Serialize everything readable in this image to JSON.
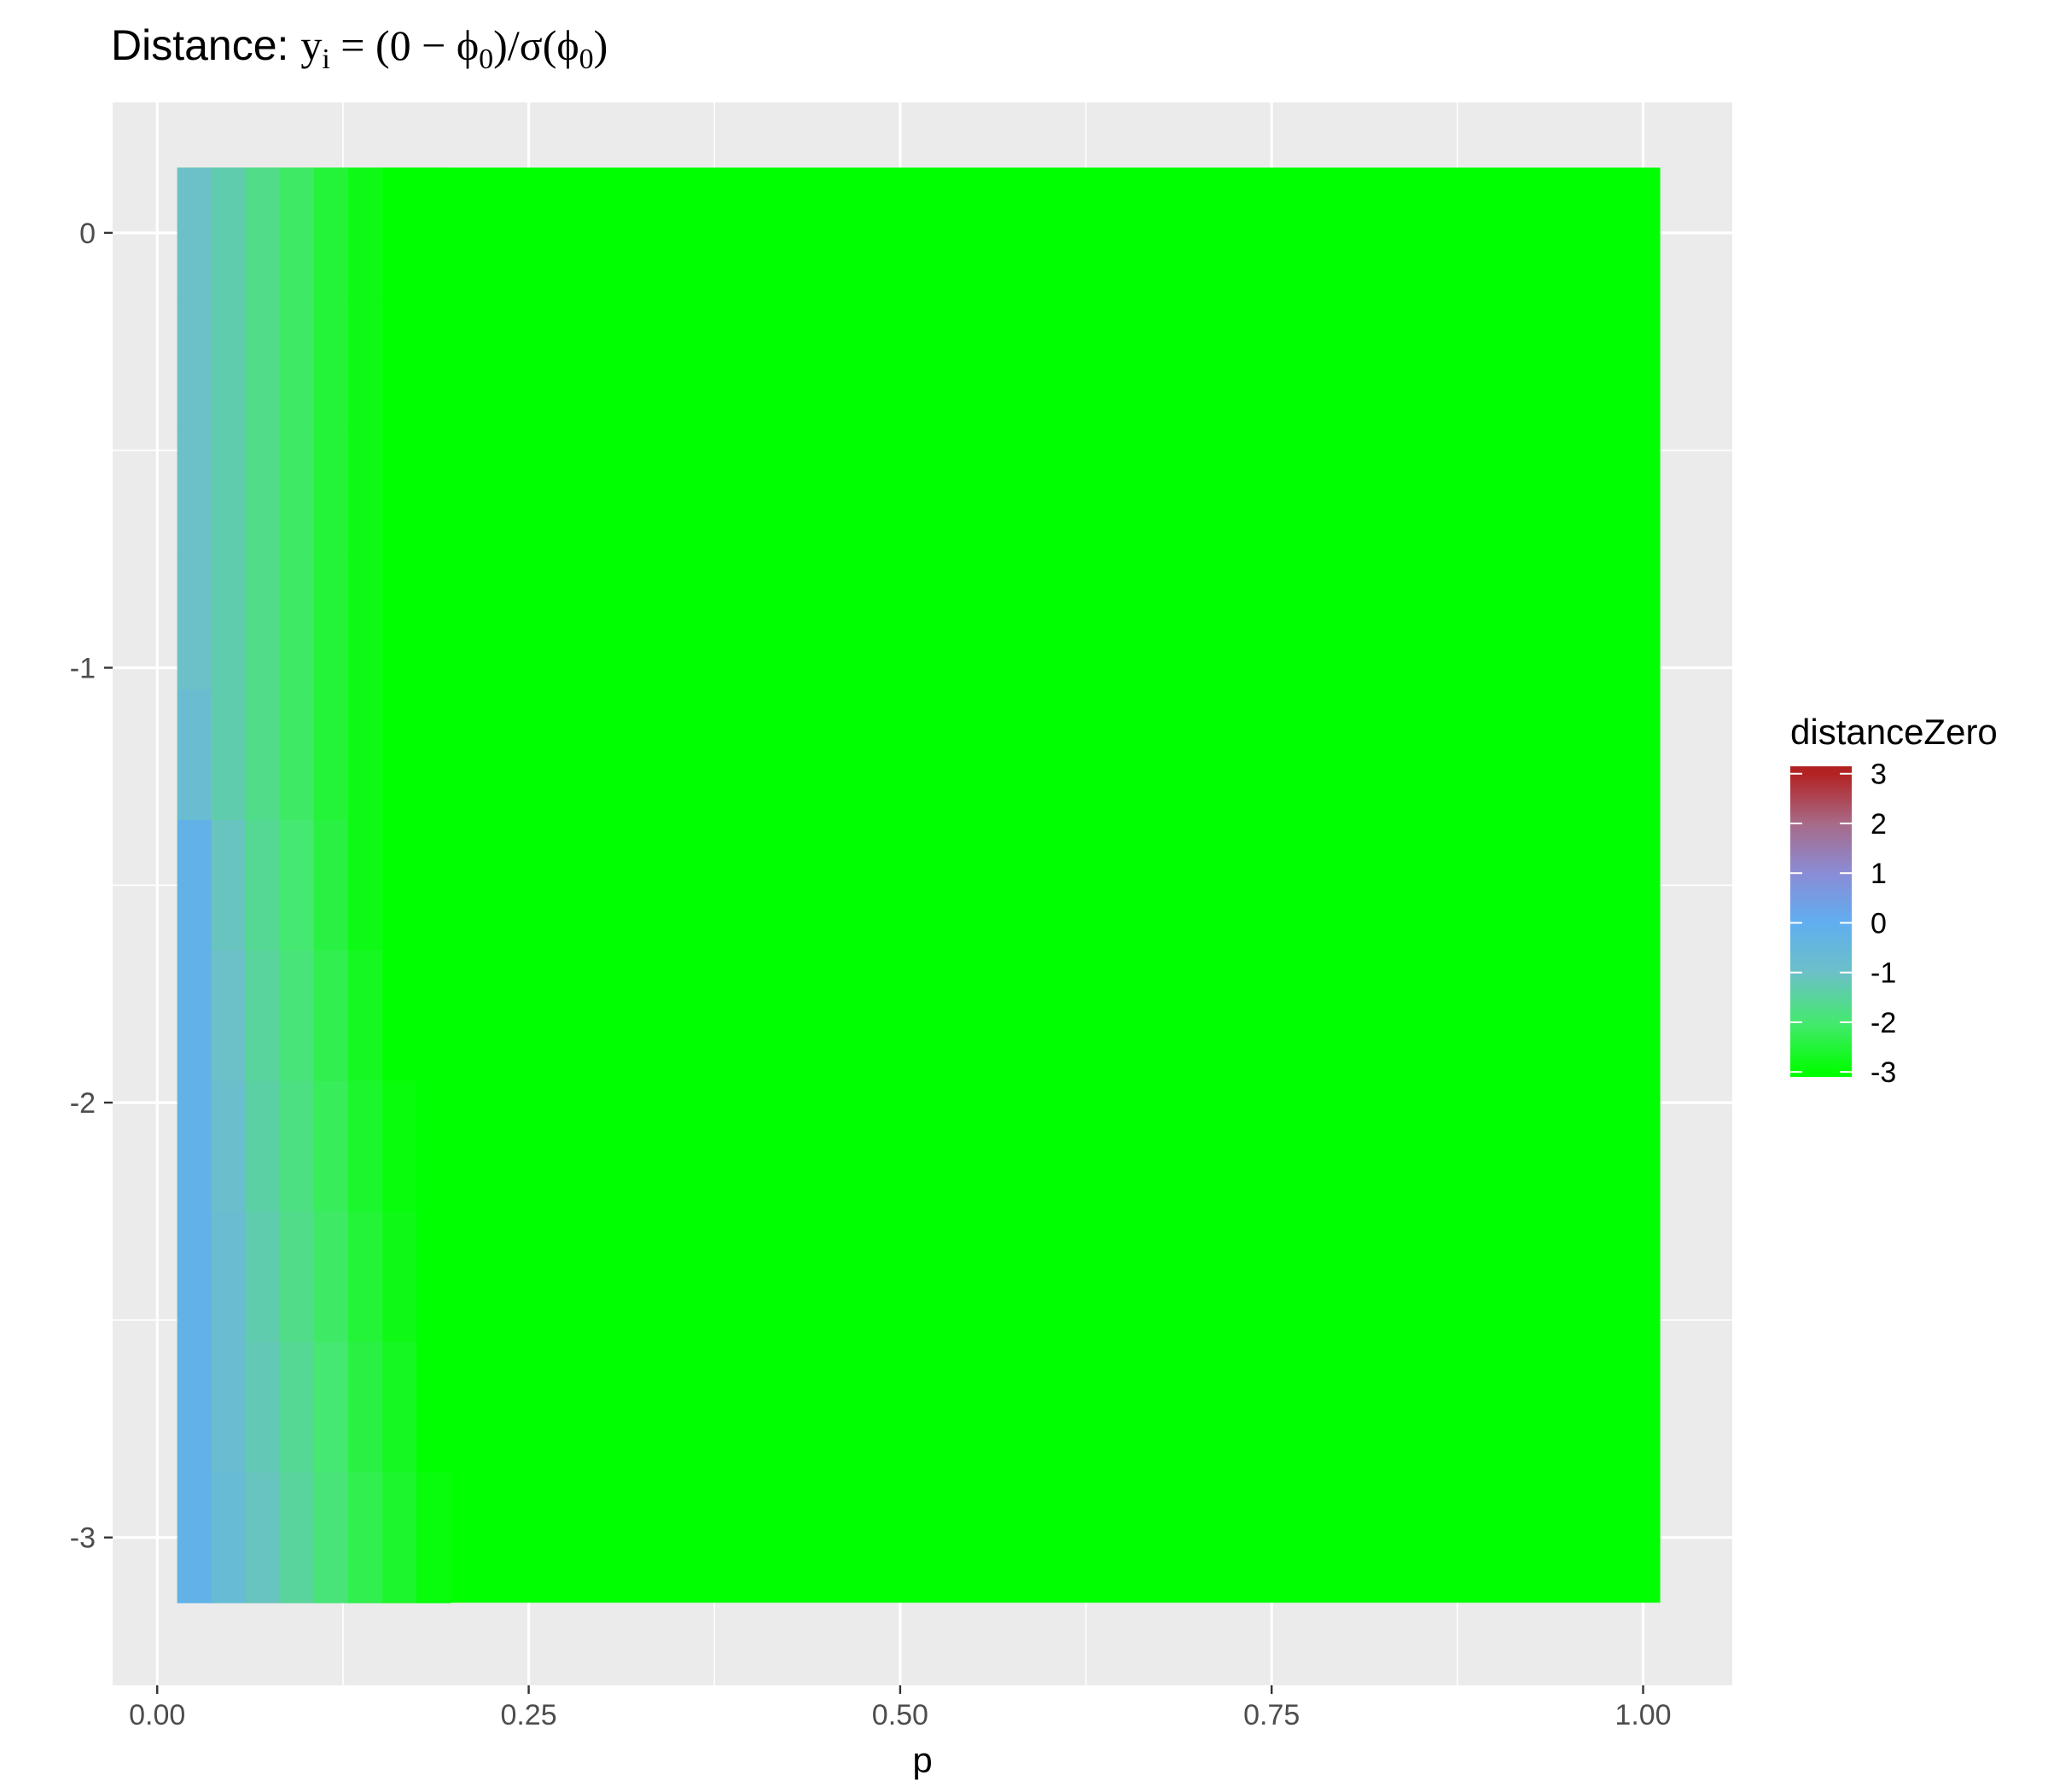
{
  "chart_data": {
    "type": "heatmap",
    "title": {
      "prefix": "Distance: ",
      "math": [
        "y",
        "i",
        "=",
        "(",
        "0",
        "−",
        "ϕ",
        "0",
        ")",
        "/",
        "σ",
        "(",
        "ϕ",
        "0",
        ")"
      ]
    },
    "xlabel": "p",
    "ylabel": "",
    "xlim": [
      -0.03,
      1.06
    ],
    "ylim": [
      -3.34,
      0.3
    ],
    "x_ticks": [
      {
        "value": 0,
        "label": "0.00"
      },
      {
        "value": 0.25,
        "label": "0.25"
      },
      {
        "value": 0.5,
        "label": "0.50"
      },
      {
        "value": 0.75,
        "label": "0.75"
      },
      {
        "value": 1.0,
        "label": "1.00"
      }
    ],
    "y_ticks": [
      {
        "value": 0,
        "label": "0"
      },
      {
        "value": -1,
        "label": "-1"
      },
      {
        "value": -2,
        "label": "-2"
      },
      {
        "value": -3,
        "label": "-3"
      }
    ],
    "grid": true,
    "tile_width": 0.023,
    "tile_height": 0.3,
    "columns_x": [
      0.025,
      0.048,
      0.071,
      0.094,
      0.117,
      0.14,
      0.163,
      0.186
    ],
    "rows_y": [
      0.0,
      -0.3,
      -0.6,
      -0.9,
      -1.2,
      -1.5,
      -1.8,
      -2.1,
      -2.4,
      -2.7,
      -3.0
    ],
    "values_by_row": [
      [
        -1.0,
        -1.3,
        -1.7,
        -2.1,
        -2.5,
        -2.8,
        -3.0,
        -3.0
      ],
      [
        -1.0,
        -1.3,
        -1.7,
        -2.1,
        -2.5,
        -2.8,
        -3.0,
        -3.0
      ],
      [
        -1.0,
        -1.3,
        -1.7,
        -2.1,
        -2.5,
        -2.8,
        -3.0,
        -3.0
      ],
      [
        -1.0,
        -1.3,
        -1.7,
        -2.1,
        -2.5,
        -2.8,
        -3.0,
        -3.0
      ],
      [
        -0.8,
        -1.3,
        -1.7,
        -2.1,
        -2.5,
        -2.8,
        -3.0,
        -3.0
      ],
      [
        -0.2,
        -1.1,
        -1.6,
        -2.0,
        -2.4,
        -2.8,
        -3.0,
        -3.0
      ],
      [
        -0.2,
        -1.0,
        -1.5,
        -1.9,
        -2.3,
        -2.7,
        -3.0,
        -3.0
      ],
      [
        -0.2,
        -0.9,
        -1.4,
        -1.8,
        -2.2,
        -2.6,
        -2.9,
        -3.0
      ],
      [
        -0.2,
        -0.8,
        -1.3,
        -1.7,
        -2.1,
        -2.5,
        -2.8,
        -3.0
      ],
      [
        -0.2,
        -0.8,
        -1.2,
        -1.6,
        -2.0,
        -2.4,
        -2.7,
        -3.0
      ],
      [
        -0.2,
        -0.7,
        -1.1,
        -1.5,
        -1.9,
        -2.3,
        -2.6,
        -2.9
      ]
    ],
    "background_value": -3.0,
    "background_extent": {
      "x": [
        0.0135,
        1.0115
      ],
      "y": [
        -3.15,
        0.15
      ]
    },
    "legend": {
      "title": "distanceZero",
      "position": "right",
      "ticks": [
        3,
        2,
        1,
        0,
        -1,
        -2,
        -3
      ],
      "tick_labels": [
        "3",
        "2",
        "1",
        "0",
        "-1",
        "-2",
        "-3"
      ],
      "scale_min": -3.1,
      "scale_max": 3.15,
      "colors": [
        {
          "value": -3,
          "color": "#00ff00"
        },
        {
          "value": -2,
          "color": "#45e870"
        },
        {
          "value": -1,
          "color": "#6cc0c8"
        },
        {
          "value": 0,
          "color": "#60aef0"
        },
        {
          "value": 1,
          "color": "#8a8cd6"
        },
        {
          "value": 2,
          "color": "#a86a88"
        },
        {
          "value": 3,
          "color": "#b22222"
        }
      ]
    },
    "panel_background": "#ebebeb",
    "grid_color": "#ffffff"
  }
}
